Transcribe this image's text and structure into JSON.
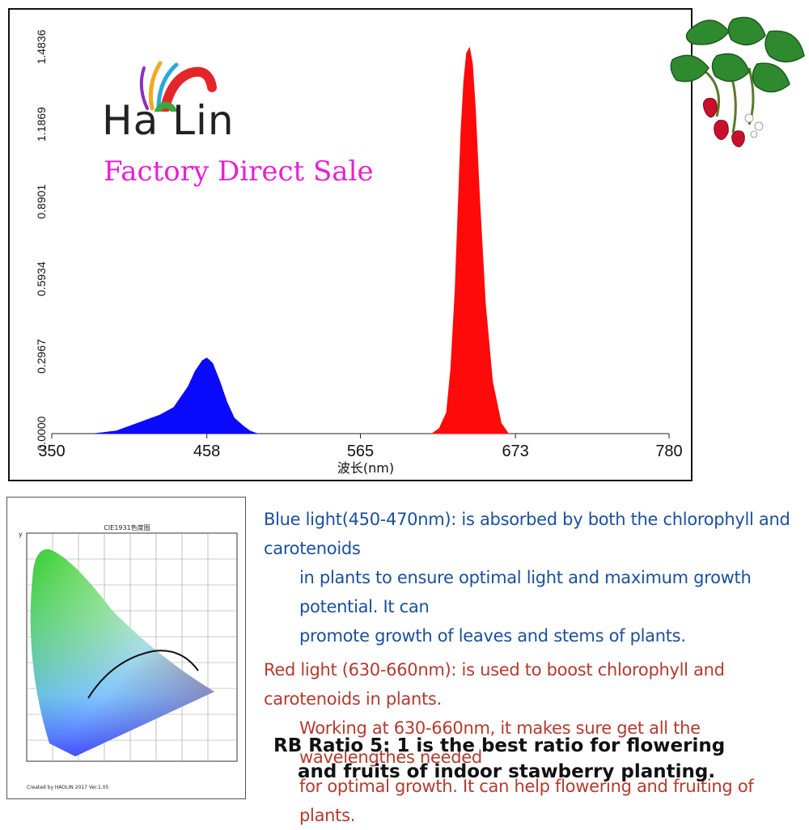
{
  "brand": {
    "logo_text": "Ha  Lin",
    "tagline": "Factory Direct Sale"
  },
  "chart_data": {
    "type": "area",
    "title": "",
    "xlabel": "波长(nm)",
    "ylabel": "",
    "xlim": [
      350,
      780
    ],
    "ylim": [
      0,
      1.4836
    ],
    "x_ticks": [
      "350",
      "458",
      "565",
      "673",
      "780"
    ],
    "y_ticks": [
      "0.0000",
      "0.2967",
      "0.5934",
      "0.8901",
      "1.1869",
      "1.4836"
    ],
    "colors": {
      "blue": "#0a0aff",
      "red": "#ff0a0a"
    },
    "series": [
      {
        "x": [
          380,
          395,
          405,
          415,
          425,
          435,
          445,
          450,
          455,
          458,
          462,
          467,
          472,
          477,
          483,
          488,
          493
        ],
        "y": [
          0.0,
          0.01,
          0.03,
          0.05,
          0.07,
          0.1,
          0.18,
          0.24,
          0.28,
          0.29,
          0.27,
          0.2,
          0.12,
          0.06,
          0.03,
          0.01,
          0.0
        ]
      },
      {
        "x": [
          615,
          620,
          625,
          628,
          631,
          633,
          635,
          637,
          639,
          641,
          643,
          645,
          648,
          652,
          657,
          663,
          668
        ],
        "y": [
          0.0,
          0.02,
          0.08,
          0.25,
          0.55,
          0.85,
          1.15,
          1.35,
          1.46,
          1.48,
          1.42,
          1.25,
          0.9,
          0.5,
          0.2,
          0.04,
          0.0
        ]
      }
    ]
  },
  "cie": {
    "title": "CIE1931色度图",
    "footer": "Created by HAOLIN 2017 Ver.1.05",
    "y_axis": "y"
  },
  "info": {
    "blue_para": {
      "line1": "Blue light(450-470nm): is absorbed by both  the chlorophyll and carotenoids",
      "line2": "in plants to ensure optimal light and maximum growth potential. It can",
      "line3": "promote  growth of leaves and stems of plants."
    },
    "red_para": {
      "line1": "Red light (630-660nm): is used to boost chlorophyll and carotenoids in plants.",
      "line2": "Working at 630-660nm, it makes sure get all the wavelengthes needed",
      "line3": "for optimal growth. It can help flowering and fruiting of plants."
    },
    "ratio": {
      "line1": "RB Ratio 5: 1  is the best ratio for flowering",
      "line2": "and fruits of  indoor stawberry planting."
    }
  }
}
